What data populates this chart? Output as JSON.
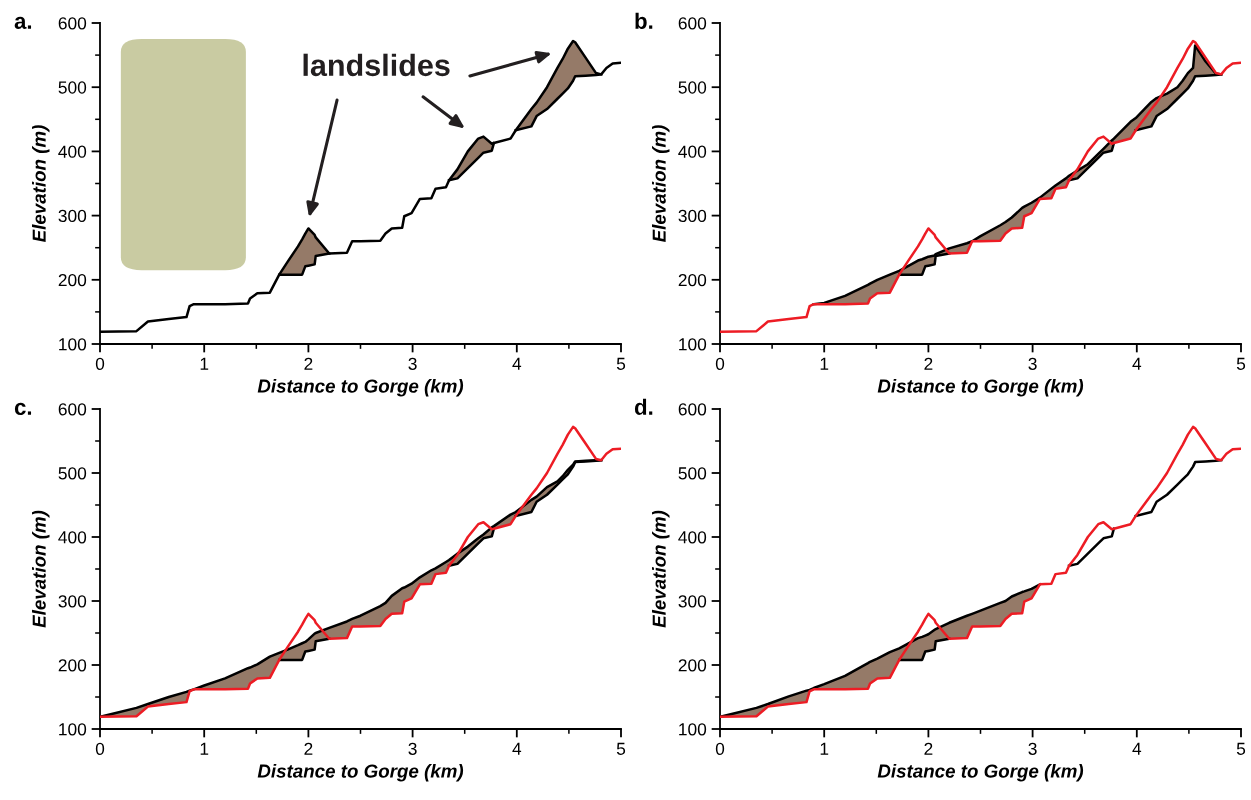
{
  "chart_data": [
    {
      "type": "line",
      "title": "a.",
      "xlabel": "Distance to Gorge (km)",
      "ylabel": "Elevation (m)",
      "xlim": [
        0,
        5
      ],
      "xticks": [
        0,
        1,
        2,
        3,
        4,
        5
      ],
      "ylim": [
        100,
        600
      ],
      "yticks": [
        100,
        200,
        300,
        400,
        500,
        600
      ],
      "annotations": [
        "landslides"
      ],
      "x": [
        0,
        0.35,
        0.46,
        0.66,
        0.83,
        0.86,
        0.9,
        1.0,
        1.2,
        1.42,
        1.44,
        1.51,
        1.63,
        1.72,
        1.8,
        1.9,
        1.94,
        1.97,
        2.0,
        2.06,
        2.07,
        2.2,
        2.37,
        2.42,
        2.5,
        2.69,
        2.74,
        2.8,
        2.9,
        2.92,
        2.99,
        3.07,
        3.18,
        3.22,
        3.32,
        3.35,
        3.43,
        3.53,
        3.63,
        3.68,
        3.76,
        3.78,
        3.94,
        3.99,
        4.14,
        4.19,
        4.29,
        4.39,
        4.44,
        4.49,
        4.54,
        4.56,
        4.66,
        4.76,
        4.81,
        4.86,
        4.92,
        5.0
      ],
      "series": [
        {
          "color": "#000000",
          "values": [
            null,
            null,
            null,
            null,
            null,
            null,
            null,
            null,
            null,
            null,
            null,
            null,
            null,
            208,
            208,
            208,
            208,
            221,
            222,
            224,
            237,
            241,
            null,
            null,
            null,
            null,
            null,
            null,
            null,
            null,
            null,
            null,
            null,
            null,
            null,
            355,
            358,
            374,
            390,
            398,
            401,
            413,
            null,
            433,
            439,
            455,
            466,
            482,
            490,
            498,
            510,
            517,
            518,
            519,
            520,
            null,
            null,
            null
          ]
        },
        {
          "color": "#000000",
          "values": [
            119,
            120,
            135,
            139,
            142,
            159,
            162,
            162,
            162,
            163,
            171,
            179,
            180,
            208,
            228,
            252,
            263,
            272,
            280,
            270,
            266,
            241,
            242,
            260,
            260,
            261,
            272,
            280,
            281,
            299,
            304,
            326,
            327,
            342,
            344,
            355,
            372,
            400,
            420,
            423,
            412,
            413,
            420,
            433,
            466,
            476,
            500,
            530,
            544,
            560,
            572,
            570,
            546,
            522,
            520,
            530,
            537,
            538
          ],
          "lower": [
            null,
            null,
            null,
            null,
            null,
            null,
            null,
            null,
            null,
            null,
            null,
            null,
            null,
            208,
            208,
            208,
            208,
            221,
            222,
            224,
            237,
            241,
            null,
            null,
            null,
            null,
            null,
            null,
            null,
            null,
            null,
            null,
            null,
            null,
            null,
            355,
            358,
            374,
            390,
            398,
            401,
            413,
            null,
            433,
            439,
            455,
            466,
            482,
            490,
            498,
            510,
            517,
            518,
            519,
            520,
            null,
            null,
            null
          ],
          "upper": [
            null,
            null,
            null,
            null,
            null,
            null,
            null,
            null,
            null,
            null,
            null,
            null,
            null,
            208,
            228,
            252,
            263,
            272,
            280,
            270,
            266,
            241,
            null,
            null,
            null,
            null,
            null,
            null,
            null,
            null,
            null,
            null,
            null,
            null,
            null,
            355,
            372,
            400,
            420,
            423,
            412,
            413,
            null,
            433,
            466,
            476,
            500,
            530,
            544,
            560,
            572,
            570,
            546,
            522,
            520,
            null,
            null,
            null
          ]
        }
      ]
    },
    {
      "type": "line",
      "title": "b.",
      "xlabel": "Distance to Gorge (km)",
      "ylabel": "Elevation (m)",
      "xlim": [
        0,
        5
      ],
      "xticks": [
        0,
        1,
        2,
        3,
        4,
        5
      ],
      "ylim": [
        100,
        600
      ],
      "yticks": [
        100,
        200,
        300,
        400,
        500,
        600
      ],
      "x": [
        0,
        0.35,
        0.46,
        0.66,
        0.83,
        0.86,
        0.9,
        1.0,
        1.2,
        1.42,
        1.44,
        1.51,
        1.63,
        1.72,
        1.8,
        1.9,
        1.94,
        1.97,
        2.0,
        2.06,
        2.07,
        2.2,
        2.37,
        2.42,
        2.5,
        2.69,
        2.74,
        2.8,
        2.9,
        2.92,
        2.99,
        3.07,
        3.18,
        3.22,
        3.32,
        3.35,
        3.43,
        3.53,
        3.63,
        3.68,
        3.76,
        3.78,
        3.94,
        3.99,
        4.14,
        4.19,
        4.29,
        4.39,
        4.44,
        4.49,
        4.54,
        4.56,
        4.66,
        4.76,
        4.81,
        4.86,
        4.92,
        5.0
      ],
      "series": [
        {
          "color": "#000000",
          "values": [
            null,
            null,
            null,
            null,
            null,
            null,
            null,
            null,
            null,
            null,
            null,
            null,
            null,
            208,
            208,
            208,
            208,
            221,
            222,
            224,
            237,
            241,
            null,
            null,
            null,
            null,
            null,
            null,
            null,
            null,
            null,
            null,
            null,
            null,
            null,
            355,
            358,
            374,
            390,
            398,
            401,
            413,
            null,
            433,
            439,
            455,
            466,
            482,
            490,
            498,
            510,
            517,
            518,
            519,
            520,
            null,
            null,
            null
          ]
        },
        {
          "color": "#000000",
          "values": [
            null,
            null,
            null,
            null,
            null,
            null,
            162,
            164,
            175,
            192,
            194,
            200,
            208,
            214,
            221,
            230,
            232,
            234,
            236,
            238,
            240,
            249,
            257,
            260,
            268,
            285,
            290,
            297,
            312,
            314,
            320,
            328,
            342,
            347,
            358,
            362,
            370,
            380,
            396,
            404,
            417,
            420,
            446,
            452,
            477,
            483,
            490,
            500,
            510,
            522,
            530,
            565,
            540,
            521,
            520,
            null,
            null,
            null
          ],
          "lower": [
            null,
            null,
            null,
            null,
            null,
            null,
            162,
            162,
            162,
            163,
            171,
            179,
            180,
            208,
            208,
            208,
            208,
            221,
            222,
            224,
            237,
            241,
            242,
            260,
            260,
            261,
            272,
            280,
            281,
            299,
            304,
            326,
            327,
            342,
            344,
            355,
            358,
            374,
            390,
            398,
            401,
            413,
            420,
            433,
            439,
            455,
            466,
            482,
            490,
            498,
            510,
            517,
            518,
            519,
            520,
            null,
            null,
            null
          ],
          "upper": [
            null,
            null,
            null,
            null,
            null,
            null,
            162,
            164,
            175,
            192,
            194,
            200,
            208,
            214,
            221,
            230,
            232,
            234,
            236,
            238,
            240,
            249,
            257,
            260,
            268,
            285,
            290,
            297,
            312,
            314,
            320,
            328,
            342,
            347,
            358,
            362,
            370,
            380,
            396,
            404,
            417,
            420,
            446,
            452,
            477,
            483,
            490,
            500,
            510,
            522,
            530,
            565,
            540,
            521,
            520,
            null,
            null,
            null
          ]
        },
        {
          "color": "#ed1c24",
          "values": [
            119,
            120,
            135,
            139,
            142,
            159,
            162,
            162,
            162,
            163,
            171,
            179,
            180,
            208,
            228,
            252,
            263,
            272,
            280,
            270,
            266,
            241,
            242,
            260,
            260,
            261,
            272,
            280,
            281,
            299,
            304,
            326,
            327,
            342,
            344,
            355,
            372,
            400,
            420,
            423,
            412,
            413,
            420,
            433,
            466,
            476,
            500,
            530,
            544,
            560,
            572,
            570,
            546,
            522,
            520,
            530,
            537,
            538
          ]
        }
      ]
    },
    {
      "type": "line",
      "title": "c.",
      "xlabel": "Distance to Gorge (km)",
      "ylabel": "Elevation (m)",
      "xlim": [
        0,
        5
      ],
      "xticks": [
        0,
        1,
        2,
        3,
        4,
        5
      ],
      "ylim": [
        100,
        600
      ],
      "yticks": [
        100,
        200,
        300,
        400,
        500,
        600
      ],
      "x": [
        0,
        0.35,
        0.46,
        0.66,
        0.83,
        0.86,
        0.9,
        1.0,
        1.2,
        1.42,
        1.44,
        1.51,
        1.63,
        1.72,
        1.8,
        1.9,
        1.94,
        1.97,
        2.0,
        2.06,
        2.07,
        2.2,
        2.37,
        2.42,
        2.5,
        2.69,
        2.74,
        2.8,
        2.9,
        2.92,
        2.99,
        3.07,
        3.18,
        3.22,
        3.32,
        3.35,
        3.43,
        3.53,
        3.63,
        3.68,
        3.76,
        3.78,
        3.94,
        3.99,
        4.14,
        4.19,
        4.29,
        4.39,
        4.44,
        4.49,
        4.54,
        4.56,
        4.66,
        4.76,
        4.81,
        4.86,
        4.92,
        5.0
      ],
      "series": [
        {
          "color": "#000000",
          "values": [
            null,
            null,
            null,
            null,
            null,
            null,
            null,
            null,
            null,
            null,
            null,
            null,
            null,
            208,
            208,
            208,
            208,
            221,
            222,
            224,
            237,
            241,
            null,
            null,
            null,
            null,
            null,
            null,
            null,
            null,
            null,
            null,
            null,
            null,
            null,
            355,
            358,
            374,
            390,
            398,
            401,
            413,
            null,
            433,
            439,
            455,
            466,
            482,
            490,
            498,
            510,
            517,
            518,
            519,
            520,
            null,
            null,
            null
          ]
        },
        {
          "color": "#000000",
          "values": [
            119,
            133,
            139,
            150,
            158,
            160,
            162,
            168,
            179,
            195,
            196,
            201,
            213,
            219,
            224,
            231,
            234,
            236,
            240,
            249,
            250,
            258,
            268,
            272,
            277,
            292,
            297,
            308,
            320,
            321,
            327,
            337,
            348,
            351,
            361,
            364,
            374,
            385,
            398,
            404,
            415,
            417,
            435,
            439,
            458,
            463,
            478,
            487,
            495,
            505,
            513,
            518,
            519,
            520,
            520,
            null,
            null,
            null
          ],
          "lower": [
            119,
            120,
            135,
            139,
            142,
            159,
            162,
            162,
            162,
            163,
            171,
            179,
            180,
            208,
            208,
            208,
            208,
            221,
            222,
            224,
            237,
            241,
            242,
            260,
            260,
            261,
            272,
            280,
            281,
            299,
            304,
            326,
            327,
            342,
            344,
            355,
            358,
            374,
            390,
            398,
            401,
            413,
            420,
            433,
            439,
            455,
            466,
            482,
            490,
            498,
            510,
            517,
            518,
            519,
            520,
            null,
            null,
            null
          ],
          "upper": [
            119,
            133,
            139,
            150,
            158,
            160,
            162,
            168,
            179,
            195,
            196,
            201,
            213,
            219,
            224,
            231,
            234,
            236,
            240,
            249,
            250,
            258,
            268,
            272,
            277,
            292,
            297,
            308,
            320,
            321,
            327,
            337,
            348,
            351,
            361,
            364,
            374,
            385,
            398,
            404,
            415,
            417,
            435,
            439,
            458,
            463,
            478,
            487,
            495,
            505,
            513,
            518,
            519,
            520,
            520,
            null,
            null,
            null
          ]
        },
        {
          "color": "#ed1c24",
          "values": [
            119,
            120,
            135,
            139,
            142,
            159,
            162,
            162,
            162,
            163,
            171,
            179,
            180,
            208,
            228,
            252,
            263,
            272,
            280,
            270,
            266,
            241,
            242,
            260,
            260,
            261,
            272,
            280,
            281,
            299,
            304,
            326,
            327,
            342,
            344,
            355,
            372,
            400,
            420,
            423,
            412,
            413,
            420,
            433,
            466,
            476,
            500,
            530,
            544,
            560,
            572,
            570,
            546,
            522,
            520,
            530,
            537,
            538
          ]
        }
      ]
    },
    {
      "type": "line",
      "title": "d.",
      "xlabel": "Distance to Gorge (km)",
      "ylabel": "Elevation (m)",
      "xlim": [
        0,
        5
      ],
      "xticks": [
        0,
        1,
        2,
        3,
        4,
        5
      ],
      "ylim": [
        100,
        600
      ],
      "yticks": [
        100,
        200,
        300,
        400,
        500,
        600
      ],
      "x": [
        0,
        0.35,
        0.46,
        0.66,
        0.83,
        0.86,
        0.9,
        1.0,
        1.2,
        1.42,
        1.44,
        1.51,
        1.63,
        1.72,
        1.8,
        1.9,
        1.94,
        1.97,
        2.0,
        2.06,
        2.07,
        2.2,
        2.37,
        2.42,
        2.5,
        2.69,
        2.74,
        2.8,
        2.9,
        2.92,
        2.99,
        3.07,
        3.18,
        3.22,
        3.32,
        3.35,
        3.43,
        3.53,
        3.63,
        3.68,
        3.76,
        3.78,
        3.94,
        3.99,
        4.14,
        4.19,
        4.29,
        4.39,
        4.44,
        4.49,
        4.54,
        4.56,
        4.66,
        4.76,
        4.81,
        4.86,
        4.92,
        5.0
      ],
      "series": [
        {
          "color": "#000000",
          "values": [
            null,
            null,
            null,
            null,
            null,
            null,
            null,
            null,
            null,
            null,
            null,
            null,
            null,
            208,
            208,
            208,
            208,
            221,
            222,
            224,
            237,
            241,
            null,
            null,
            null,
            null,
            null,
            null,
            null,
            null,
            null,
            null,
            null,
            null,
            null,
            355,
            358,
            374,
            390,
            398,
            401,
            413,
            null,
            433,
            439,
            455,
            466,
            482,
            490,
            498,
            510,
            517,
            518,
            519,
            520,
            null,
            null,
            null
          ]
        },
        {
          "color": "#000000",
          "values": [
            119,
            133,
            139,
            151,
            160,
            161,
            164,
            170,
            183,
            203,
            205,
            210,
            220,
            226,
            233,
            242,
            244,
            246,
            248,
            255,
            256,
            266,
            277,
            280,
            285,
            297,
            300,
            307,
            314,
            315,
            319,
            326,
            null,
            null,
            null,
            null,
            null,
            null,
            null,
            null,
            null,
            null,
            null,
            null,
            null,
            null,
            null,
            null,
            null,
            null,
            null,
            null,
            null,
            null,
            null,
            null,
            null,
            null
          ],
          "lower": [
            119,
            120,
            135,
            139,
            142,
            159,
            162,
            162,
            162,
            163,
            171,
            179,
            180,
            208,
            208,
            208,
            208,
            221,
            222,
            224,
            237,
            241,
            242,
            260,
            260,
            261,
            272,
            280,
            281,
            299,
            304,
            326,
            null,
            null,
            null,
            null,
            null,
            null,
            null,
            null,
            null,
            null,
            null,
            null,
            null,
            null,
            null,
            null,
            null,
            null,
            null,
            null,
            null,
            null,
            null,
            null,
            null,
            null
          ],
          "upper": [
            119,
            133,
            139,
            151,
            160,
            161,
            164,
            170,
            183,
            203,
            205,
            210,
            220,
            226,
            233,
            242,
            244,
            246,
            248,
            255,
            256,
            266,
            277,
            280,
            285,
            297,
            300,
            307,
            314,
            315,
            319,
            326,
            null,
            null,
            null,
            null,
            null,
            null,
            null,
            null,
            null,
            null,
            null,
            null,
            null,
            null,
            null,
            null,
            null,
            null,
            null,
            null,
            null,
            null,
            null,
            null,
            null,
            null
          ]
        },
        {
          "color": "#ed1c24",
          "values": [
            119,
            120,
            135,
            139,
            142,
            159,
            162,
            162,
            162,
            163,
            171,
            179,
            180,
            208,
            228,
            252,
            263,
            272,
            280,
            270,
            266,
            241,
            242,
            260,
            260,
            261,
            272,
            280,
            281,
            299,
            304,
            326,
            327,
            342,
            344,
            355,
            372,
            400,
            420,
            423,
            412,
            413,
            420,
            433,
            466,
            476,
            500,
            530,
            544,
            560,
            572,
            570,
            546,
            522,
            520,
            530,
            537,
            538
          ]
        }
      ]
    }
  ]
}
